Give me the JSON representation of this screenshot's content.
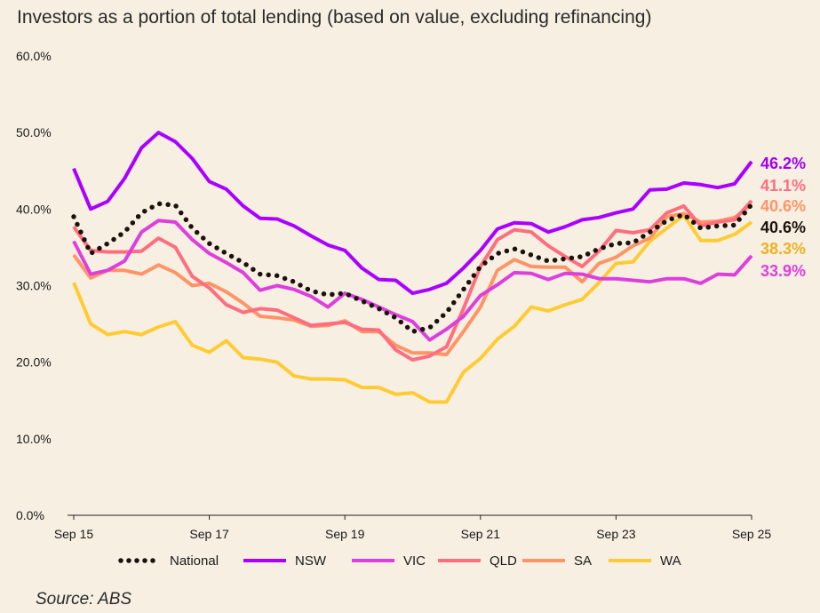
{
  "chart_data": {
    "type": "line",
    "title": "Investors as a portion of total lending (based on value, excluding refinancing)",
    "source": "Source: ABS",
    "xlabel": "",
    "ylabel": "",
    "x_ticks": [
      "Sep 15",
      "Sep 17",
      "Sep 19",
      "Sep 21",
      "Sep 23",
      "Sep 25"
    ],
    "x_range": [
      "Sep 15",
      "Sep 25"
    ],
    "x_frequency": "quarterly",
    "y_ticks": [
      "0.0%",
      "10.0%",
      "20.0%",
      "30.0%",
      "40.0%",
      "50.0%",
      "60.0%"
    ],
    "ylim": [
      0,
      60
    ],
    "grid": false,
    "legend": "bottom",
    "series": [
      {
        "name": "National",
        "color": "#1a120b",
        "style": "dotted",
        "end_label": "40.6%",
        "values": [
          39.0,
          34.2,
          35.5,
          37.0,
          39.5,
          40.7,
          40.5,
          37.5,
          35.5,
          34.2,
          33.0,
          31.5,
          31.3,
          30.5,
          29.3,
          28.8,
          29.0,
          28.0,
          27.0,
          25.8,
          24.0,
          24.5,
          26.5,
          29.5,
          32.5,
          34.2,
          34.8,
          34.0,
          33.2,
          33.5,
          33.8,
          34.8,
          35.5,
          35.6,
          37.0,
          38.5,
          39.3,
          37.5,
          37.8,
          37.9,
          40.6
        ]
      },
      {
        "name": "NSW",
        "color": "#aa00ff",
        "style": "solid",
        "end_label": "46.2%",
        "values": [
          45.3,
          40.0,
          41.0,
          44.0,
          48.0,
          50.0,
          48.8,
          46.6,
          43.6,
          42.6,
          40.4,
          38.8,
          38.7,
          37.8,
          36.5,
          35.3,
          34.6,
          32.3,
          30.8,
          30.7,
          29.0,
          29.5,
          30.3,
          32.3,
          34.6,
          37.4,
          38.2,
          38.1,
          37.0,
          37.7,
          38.6,
          38.9,
          39.5,
          40.0,
          42.5,
          42.6,
          43.4,
          43.2,
          42.8,
          43.3,
          46.2
        ]
      },
      {
        "name": "VIC",
        "color": "#dd3fdd",
        "style": "solid",
        "end_label": "33.9%",
        "values": [
          35.8,
          31.5,
          32.0,
          33.2,
          37.0,
          38.5,
          38.3,
          36.0,
          34.2,
          33.0,
          31.7,
          29.4,
          30.0,
          29.5,
          28.6,
          27.2,
          29.0,
          28.2,
          27.2,
          26.2,
          25.3,
          22.9,
          24.3,
          26.0,
          28.7,
          30.1,
          31.7,
          31.6,
          30.8,
          31.6,
          31.5,
          30.9,
          30.9,
          30.7,
          30.5,
          30.9,
          30.9,
          30.3,
          31.5,
          31.4,
          33.9
        ]
      },
      {
        "name": "QLD",
        "color": "#ff6e7f",
        "style": "solid",
        "end_label": "41.1%",
        "values": [
          37.7,
          34.6,
          34.4,
          34.4,
          34.5,
          36.2,
          35.0,
          31.2,
          29.7,
          27.5,
          26.5,
          27.0,
          26.8,
          25.8,
          24.8,
          25.0,
          25.2,
          24.3,
          24.2,
          21.6,
          20.3,
          20.8,
          22.0,
          27.0,
          32.5,
          36.0,
          37.3,
          37.0,
          35.2,
          33.8,
          32.5,
          34.5,
          37.2,
          36.9,
          37.3,
          39.5,
          40.4,
          37.8,
          38.3,
          38.6,
          41.1
        ]
      },
      {
        "name": "SA",
        "color": "#ff9466",
        "style": "solid",
        "end_label": "40.6%",
        "values": [
          34.0,
          31.0,
          32.0,
          32.0,
          31.5,
          32.7,
          31.7,
          30.0,
          30.3,
          29.2,
          27.7,
          26.0,
          25.8,
          25.5,
          24.7,
          24.8,
          25.4,
          24.0,
          24.0,
          22.2,
          21.2,
          21.2,
          21.0,
          24.0,
          27.2,
          32.0,
          33.4,
          32.5,
          32.4,
          32.4,
          30.5,
          32.9,
          33.7,
          35.2,
          36.2,
          39.0,
          39.4,
          38.3,
          38.4,
          38.9,
          40.6
        ]
      },
      {
        "name": "WA",
        "color": "#ffcb33",
        "style": "solid",
        "end_label": "38.3%",
        "values": [
          30.4,
          25.0,
          23.6,
          24.0,
          23.6,
          24.6,
          25.3,
          22.2,
          21.3,
          22.8,
          20.6,
          20.4,
          20.0,
          18.2,
          17.8,
          17.8,
          17.7,
          16.7,
          16.7,
          15.8,
          16.0,
          14.8,
          14.8,
          18.7,
          20.5,
          23.0,
          24.7,
          27.2,
          26.7,
          27.5,
          28.2,
          30.4,
          32.9,
          33.1,
          35.8,
          37.5,
          39.2,
          35.9,
          35.9,
          36.7,
          38.3
        ]
      }
    ],
    "end_label_colors": {
      "NSW": "#a000f0",
      "QLD": "#ff6e7f",
      "SA": "#ff9466",
      "National": "#1a120b",
      "WA": "#f0b020",
      "VIC": "#dd3fdd"
    },
    "end_label_order": [
      "NSW",
      "QLD",
      "SA",
      "National",
      "WA",
      "VIC"
    ]
  }
}
